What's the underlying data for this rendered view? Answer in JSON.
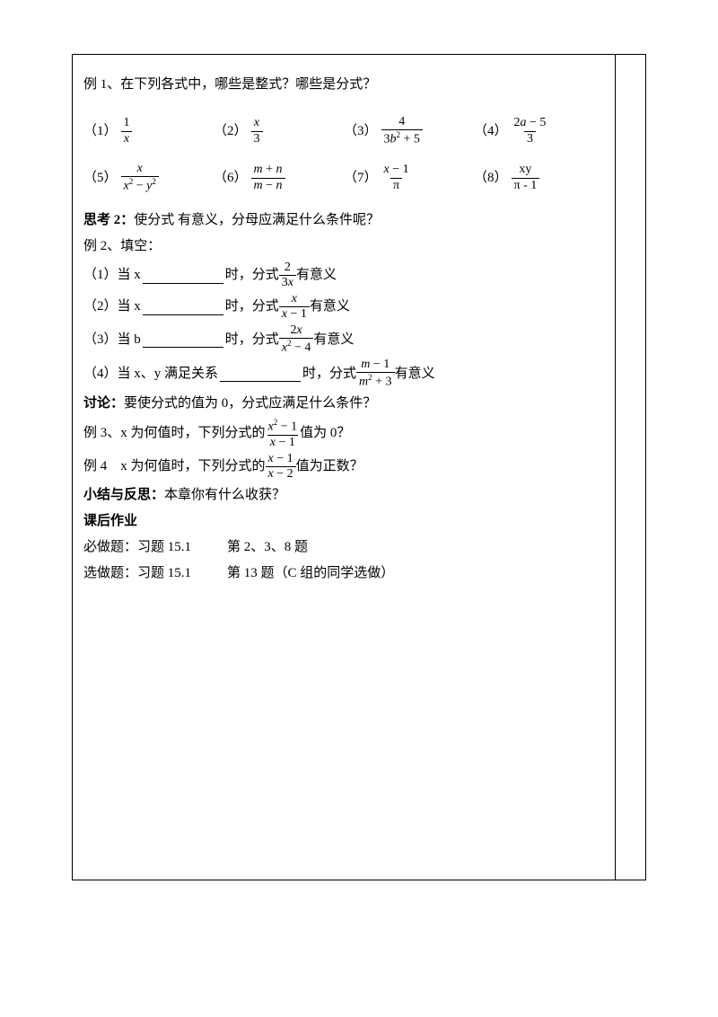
{
  "ex1": {
    "title": "例 1、在下列各式中，哪些是整式？哪些是分式？",
    "items": [
      {
        "label": "（1）",
        "num": "1",
        "den": "x"
      },
      {
        "label": "（2）",
        "num": "x",
        "den": "3"
      },
      {
        "label": "（3）",
        "num": "4",
        "den_html": "3<i>b</i><span class='sup'>2</span> + 5"
      },
      {
        "label": "（4）",
        "num_html": "2<i>a</i> − 5",
        "den": "3"
      },
      {
        "label": "（5）",
        "num": "x",
        "den_html": "<i>x</i><span class='sup'>2</span> − <i>y</i><span class='sup'>2</span>"
      },
      {
        "label": "（6）",
        "num_html": "<i>m</i> + <i>n</i>",
        "den_html": "<i>m</i> − <i>n</i>"
      },
      {
        "label": "（7）",
        "num_html": "<i>x</i> − 1",
        "den": "π"
      },
      {
        "label": "（8）",
        "num": "xy",
        "den": "π - 1"
      }
    ]
  },
  "think2": {
    "label": "思考 2：",
    "text": "使分式 有意义，分母应满足什么条件呢？"
  },
  "ex2": {
    "title": "例 2、填空：",
    "items": [
      {
        "pre": "（1）当 x",
        "mid": "时，分式",
        "num": "2",
        "den_html": "3<i>x</i>",
        "post": "有意义"
      },
      {
        "pre": "（2）当 x",
        "mid": "时，分式",
        "num": "x",
        "den_html": "<i>x</i> − 1",
        "post": "有意义"
      },
      {
        "pre": "（3）当 b",
        "mid": "时，分式",
        "num_html": "2<i>x</i>",
        "den_html": "<i>x</i><span class='sup'>2</span> − 4",
        "post": "有意义"
      },
      {
        "pre": "（4）当 x、y 满足关系",
        "mid": "时，分式",
        "num_html": "<i>m</i> − 1",
        "den_html": "<i>m</i><span class='sup'>2</span> + 3",
        "post": "有意义"
      }
    ]
  },
  "discuss": {
    "label": "讨论：",
    "text": "要使分式的值为 0，分式应满足什么条件？"
  },
  "ex3": {
    "pre": "例 3、x 为何值时，下列分式的",
    "num_html": "<i>x</i><span class='sup'>2</span> − 1",
    "den_html": "<i>x</i> − 1",
    "post": "值为 0？"
  },
  "ex4": {
    "pre": "例 4　x 为何值时，下列分式的",
    "num_html": "<i>x</i> − 1",
    "den_html": "<i>x</i> − 2",
    "post": "值为正数？"
  },
  "summary": {
    "label": "小结与反思：",
    "text": "本章你有什么收获？"
  },
  "homework": {
    "title": "课后作业",
    "required": {
      "pre": "必做题：习题 15.1",
      "post": "第 2、3、8 题"
    },
    "optional": {
      "pre": "选做题：习题 15.1",
      "post": "第 13 题（C 组的同学选做）"
    }
  }
}
